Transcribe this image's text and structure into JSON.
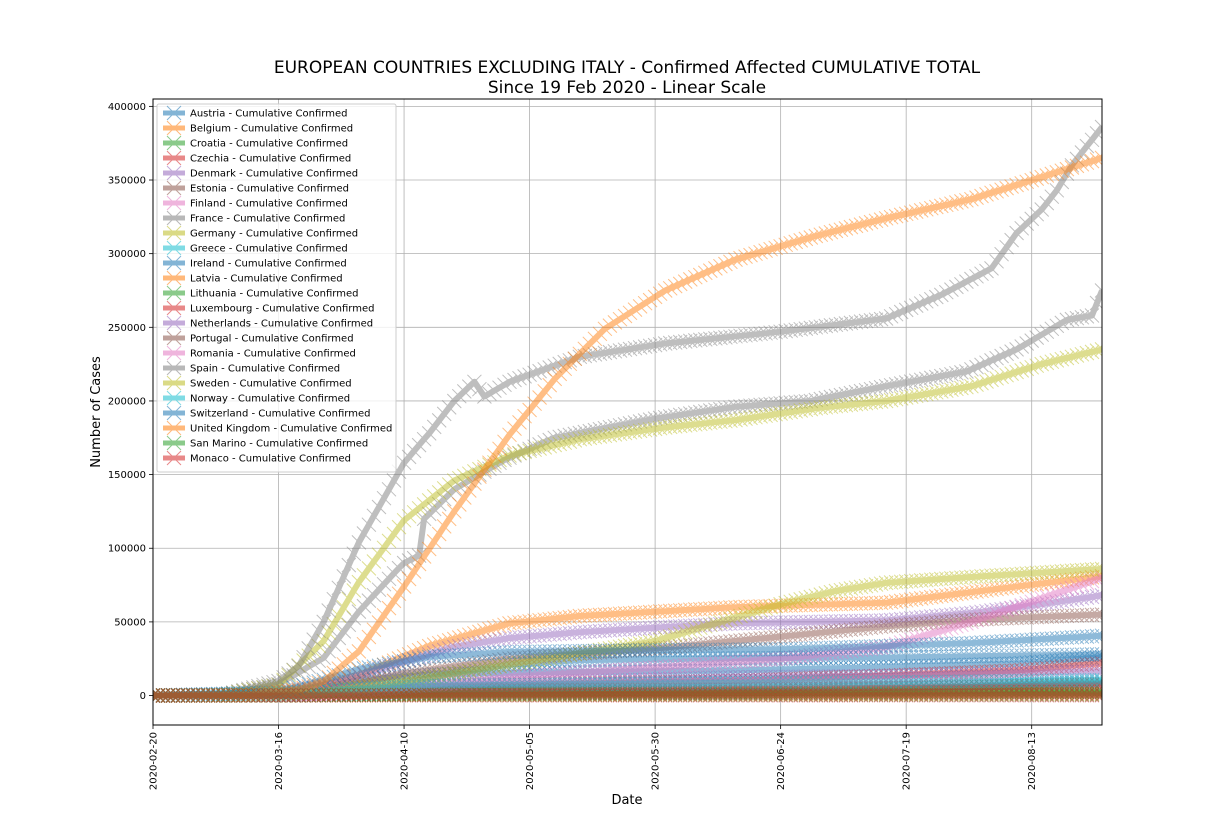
{
  "chart_data": {
    "type": "line",
    "title": "EUROPEAN COUNTRIES EXCLUDING ITALY - Confirmed Affected CUMULATIVE TOTAL",
    "subtitle": "Since 19 Feb 2020 - Linear Scale",
    "xlabel": "Date",
    "ylabel": "Number of Cases",
    "xlim": [
      "2020-02-20",
      "2020-08-27"
    ],
    "ylim": [
      -20000,
      405000
    ],
    "x_ticks": [
      "2020-02-20",
      "2020-03-16",
      "2020-04-10",
      "2020-05-05",
      "2020-05-30",
      "2020-06-24",
      "2020-07-19",
      "2020-08-13"
    ],
    "y_ticks": [
      0,
      50000,
      100000,
      150000,
      200000,
      250000,
      300000,
      350000,
      400000
    ],
    "grid": true,
    "legend_position": "upper-left",
    "series": [
      {
        "name": "Austria - Cumulative Confirmed",
        "color": "#1f77b4",
        "points": [
          [
            "2020-02-20",
            0
          ],
          [
            "2020-03-10",
            150
          ],
          [
            "2020-03-20",
            2600
          ],
          [
            "2020-04-01",
            10500
          ],
          [
            "2020-04-15",
            14300
          ],
          [
            "2020-05-05",
            15700
          ],
          [
            "2020-06-15",
            17100
          ],
          [
            "2020-07-15",
            19300
          ],
          [
            "2020-08-10",
            21800
          ],
          [
            "2020-08-27",
            26000
          ]
        ]
      },
      {
        "name": "Belgium - Cumulative Confirmed",
        "color": "#ff7f0e",
        "points": [
          [
            "2020-02-20",
            0
          ],
          [
            "2020-03-10",
            270
          ],
          [
            "2020-03-20",
            2800
          ],
          [
            "2020-04-01",
            13900
          ],
          [
            "2020-04-15",
            33600
          ],
          [
            "2020-05-01",
            49000
          ],
          [
            "2020-05-15",
            54000
          ],
          [
            "2020-06-15",
            60000
          ],
          [
            "2020-07-15",
            63000
          ],
          [
            "2020-08-10",
            74000
          ],
          [
            "2020-08-27",
            81000
          ]
        ]
      },
      {
        "name": "Croatia - Cumulative Confirmed",
        "color": "#2ca02c",
        "points": [
          [
            "2020-02-20",
            0
          ],
          [
            "2020-03-20",
            100
          ],
          [
            "2020-04-15",
            1800
          ],
          [
            "2020-06-15",
            2400
          ],
          [
            "2020-07-15",
            4500
          ],
          [
            "2020-08-27",
            8000
          ]
        ]
      },
      {
        "name": "Czechia - Cumulative Confirmed",
        "color": "#d62728",
        "points": [
          [
            "2020-02-20",
            0
          ],
          [
            "2020-03-20",
            800
          ],
          [
            "2020-04-15",
            6400
          ],
          [
            "2020-06-15",
            10000
          ],
          [
            "2020-07-15",
            13500
          ],
          [
            "2020-08-10",
            17000
          ],
          [
            "2020-08-27",
            22000
          ]
        ]
      },
      {
        "name": "Denmark - Cumulative Confirmed",
        "color": "#9467bd",
        "points": [
          [
            "2020-02-20",
            0
          ],
          [
            "2020-03-20",
            1300
          ],
          [
            "2020-04-15",
            6700
          ],
          [
            "2020-06-15",
            12500
          ],
          [
            "2020-07-15",
            13200
          ],
          [
            "2020-08-27",
            16500
          ]
        ]
      },
      {
        "name": "Estonia - Cumulative Confirmed",
        "color": "#8c564b",
        "points": [
          [
            "2020-02-20",
            0
          ],
          [
            "2020-03-20",
            300
          ],
          [
            "2020-04-15",
            1400
          ],
          [
            "2020-08-27",
            2300
          ]
        ]
      },
      {
        "name": "Finland - Cumulative Confirmed",
        "color": "#e377c2",
        "points": [
          [
            "2020-02-20",
            0
          ],
          [
            "2020-03-20",
            450
          ],
          [
            "2020-04-15",
            3200
          ],
          [
            "2020-06-15",
            7100
          ],
          [
            "2020-08-27",
            8100
          ]
        ]
      },
      {
        "name": "France - Cumulative Confirmed",
        "color": "#7f7f7f",
        "points": [
          [
            "2020-02-20",
            12
          ],
          [
            "2020-03-05",
            420
          ],
          [
            "2020-03-16",
            7700
          ],
          [
            "2020-03-25",
            25600
          ],
          [
            "2020-04-01",
            57000
          ],
          [
            "2020-04-08",
            83000
          ],
          [
            "2020-04-10",
            90000
          ],
          [
            "2020-04-13",
            95000
          ],
          [
            "2020-04-14",
            120000
          ],
          [
            "2020-04-20",
            140000
          ],
          [
            "2020-04-30",
            160000
          ],
          [
            "2020-05-10",
            175000
          ],
          [
            "2020-05-30",
            188000
          ],
          [
            "2020-06-15",
            196000
          ],
          [
            "2020-06-30",
            200000
          ],
          [
            "2020-07-15",
            210000
          ],
          [
            "2020-07-31",
            220000
          ],
          [
            "2020-08-10",
            235000
          ],
          [
            "2020-08-20",
            255000
          ],
          [
            "2020-08-25",
            258000
          ],
          [
            "2020-08-27",
            275000
          ]
        ]
      },
      {
        "name": "Germany - Cumulative Confirmed",
        "color": "#bcbd22",
        "points": [
          [
            "2020-02-20",
            16
          ],
          [
            "2020-03-05",
            480
          ],
          [
            "2020-03-16",
            7300
          ],
          [
            "2020-03-25",
            37000
          ],
          [
            "2020-04-01",
            77000
          ],
          [
            "2020-04-10",
            119000
          ],
          [
            "2020-04-20",
            146000
          ],
          [
            "2020-05-01",
            163000
          ],
          [
            "2020-05-15",
            174000
          ],
          [
            "2020-06-01",
            182000
          ],
          [
            "2020-06-15",
            187000
          ],
          [
            "2020-07-01",
            195000
          ],
          [
            "2020-07-15",
            200000
          ],
          [
            "2020-08-01",
            210000
          ],
          [
            "2020-08-15",
            225000
          ],
          [
            "2020-08-27",
            235000
          ]
        ]
      },
      {
        "name": "Greece - Cumulative Confirmed",
        "color": "#17becf",
        "points": [
          [
            "2020-02-20",
            0
          ],
          [
            "2020-03-20",
            500
          ],
          [
            "2020-04-15",
            2200
          ],
          [
            "2020-06-15",
            3100
          ],
          [
            "2020-07-15",
            3900
          ],
          [
            "2020-08-27",
            9600
          ]
        ]
      },
      {
        "name": "Ireland - Cumulative Confirmed",
        "color": "#1f77b4",
        "points": [
          [
            "2020-02-20",
            0
          ],
          [
            "2020-03-20",
            680
          ],
          [
            "2020-04-10",
            8000
          ],
          [
            "2020-04-20",
            15600
          ],
          [
            "2020-05-01",
            21000
          ],
          [
            "2020-05-15",
            24000
          ],
          [
            "2020-06-15",
            25300
          ],
          [
            "2020-07-15",
            25800
          ],
          [
            "2020-08-27",
            28000
          ]
        ]
      },
      {
        "name": "Latvia - Cumulative Confirmed",
        "color": "#ff7f0e",
        "points": [
          [
            "2020-02-20",
            0
          ],
          [
            "2020-03-20",
            110
          ],
          [
            "2020-04-15",
            700
          ],
          [
            "2020-08-27",
            1300
          ]
        ]
      },
      {
        "name": "Lithuania - Cumulative Confirmed",
        "color": "#2ca02c",
        "points": [
          [
            "2020-02-20",
            0
          ],
          [
            "2020-03-20",
            60
          ],
          [
            "2020-04-15",
            1100
          ],
          [
            "2020-06-15",
            1750
          ],
          [
            "2020-08-27",
            2600
          ]
        ]
      },
      {
        "name": "Luxembourg - Cumulative Confirmed",
        "color": "#d62728",
        "points": [
          [
            "2020-02-20",
            0
          ],
          [
            "2020-03-20",
            480
          ],
          [
            "2020-04-15",
            3300
          ],
          [
            "2020-06-15",
            4100
          ],
          [
            "2020-07-15",
            5200
          ],
          [
            "2020-08-27",
            7200
          ]
        ]
      },
      {
        "name": "Netherlands - Cumulative Confirmed",
        "color": "#9467bd",
        "points": [
          [
            "2020-02-20",
            0
          ],
          [
            "2020-03-16",
            1400
          ],
          [
            "2020-03-25",
            6400
          ],
          [
            "2020-04-10",
            23000
          ],
          [
            "2020-04-20",
            33000
          ],
          [
            "2020-05-01",
            39000
          ],
          [
            "2020-05-15",
            43000
          ],
          [
            "2020-06-01",
            46500
          ],
          [
            "2020-06-15",
            49000
          ],
          [
            "2020-07-15",
            51000
          ],
          [
            "2020-08-01",
            56000
          ],
          [
            "2020-08-15",
            62000
          ],
          [
            "2020-08-27",
            68000
          ]
        ]
      },
      {
        "name": "Portugal - Cumulative Confirmed",
        "color": "#8c564b",
        "points": [
          [
            "2020-02-20",
            0
          ],
          [
            "2020-03-16",
            330
          ],
          [
            "2020-03-25",
            3500
          ],
          [
            "2020-04-10",
            15000
          ],
          [
            "2020-05-01",
            25000
          ],
          [
            "2020-06-01",
            32500
          ],
          [
            "2020-06-24",
            40000
          ],
          [
            "2020-07-15",
            47000
          ],
          [
            "2020-08-01",
            51500
          ],
          [
            "2020-08-27",
            55000
          ]
        ]
      },
      {
        "name": "Romania - Cumulative Confirmed",
        "color": "#e377c2",
        "points": [
          [
            "2020-02-20",
            0
          ],
          [
            "2020-03-20",
            300
          ],
          [
            "2020-04-10",
            5500
          ],
          [
            "2020-05-01",
            12500
          ],
          [
            "2020-06-01",
            19500
          ],
          [
            "2020-06-24",
            25000
          ],
          [
            "2020-07-15",
            33000
          ],
          [
            "2020-08-01",
            50000
          ],
          [
            "2020-08-15",
            66000
          ],
          [
            "2020-08-27",
            80000
          ]
        ]
      },
      {
        "name": "Spain - Cumulative Confirmed",
        "color": "#7f7f7f",
        "points": [
          [
            "2020-02-20",
            2
          ],
          [
            "2020-03-05",
            260
          ],
          [
            "2020-03-16",
            9900
          ],
          [
            "2020-03-20",
            20000
          ],
          [
            "2020-03-25",
            50000
          ],
          [
            "2020-04-01",
            104000
          ],
          [
            "2020-04-10",
            158000
          ],
          [
            "2020-04-15",
            178000
          ],
          [
            "2020-04-20",
            200000
          ],
          [
            "2020-04-24",
            213000
          ],
          [
            "2020-04-26",
            203000
          ],
          [
            "2020-05-01",
            213000
          ],
          [
            "2020-05-15",
            230000
          ],
          [
            "2020-06-01",
            239000
          ],
          [
            "2020-06-24",
            247000
          ],
          [
            "2020-07-15",
            256000
          ],
          [
            "2020-07-26",
            272000
          ],
          [
            "2020-08-05",
            290000
          ],
          [
            "2020-08-10",
            314000
          ],
          [
            "2020-08-15",
            330000
          ],
          [
            "2020-08-18",
            343000
          ],
          [
            "2020-08-21",
            360000
          ],
          [
            "2020-08-27",
            386000
          ]
        ]
      },
      {
        "name": "Sweden - Cumulative Confirmed",
        "color": "#bcbd22",
        "points": [
          [
            "2020-02-20",
            1
          ],
          [
            "2020-03-16",
            1100
          ],
          [
            "2020-03-25",
            2500
          ],
          [
            "2020-04-10",
            9600
          ],
          [
            "2020-05-01",
            21000
          ],
          [
            "2020-05-30",
            37000
          ],
          [
            "2020-06-15",
            53000
          ],
          [
            "2020-06-24",
            62000
          ],
          [
            "2020-07-05",
            71000
          ],
          [
            "2020-07-15",
            76500
          ],
          [
            "2020-08-01",
            80500
          ],
          [
            "2020-08-27",
            86000
          ]
        ]
      },
      {
        "name": "Norway - Cumulative Confirmed",
        "color": "#17becf",
        "points": [
          [
            "2020-02-20",
            0
          ],
          [
            "2020-03-16",
            1300
          ],
          [
            "2020-03-25",
            3100
          ],
          [
            "2020-04-15",
            6700
          ],
          [
            "2020-06-15",
            8700
          ],
          [
            "2020-07-15",
            9000
          ],
          [
            "2020-08-27",
            10500
          ]
        ]
      },
      {
        "name": "Switzerland - Cumulative Confirmed",
        "color": "#1f77b4",
        "points": [
          [
            "2020-02-20",
            0
          ],
          [
            "2020-03-16",
            2200
          ],
          [
            "2020-03-25",
            10700
          ],
          [
            "2020-04-01",
            17800
          ],
          [
            "2020-04-15",
            26300
          ],
          [
            "2020-05-01",
            29600
          ],
          [
            "2020-06-01",
            30900
          ],
          [
            "2020-06-24",
            31400
          ],
          [
            "2020-07-15",
            33600
          ],
          [
            "2020-08-01",
            35600
          ],
          [
            "2020-08-27",
            40600
          ]
        ]
      },
      {
        "name": "United Kingdom - Cumulative Confirmed",
        "color": "#ff7f0e",
        "points": [
          [
            "2020-02-20",
            9
          ],
          [
            "2020-03-10",
            370
          ],
          [
            "2020-03-20",
            4000
          ],
          [
            "2020-03-25",
            9500
          ],
          [
            "2020-04-01",
            30000
          ],
          [
            "2020-04-10",
            74000
          ],
          [
            "2020-04-20",
            125000
          ],
          [
            "2020-05-01",
            177000
          ],
          [
            "2020-05-10",
            215000
          ],
          [
            "2020-05-20",
            249000
          ],
          [
            "2020-06-01",
            275000
          ],
          [
            "2020-06-15",
            296000
          ],
          [
            "2020-07-01",
            312000
          ],
          [
            "2020-07-15",
            324000
          ],
          [
            "2020-08-01",
            337000
          ],
          [
            "2020-08-15",
            352000
          ],
          [
            "2020-08-27",
            365000
          ]
        ]
      },
      {
        "name": "San Marino - Cumulative Confirmed",
        "color": "#2ca02c",
        "points": [
          [
            "2020-02-20",
            0
          ],
          [
            "2020-03-20",
            140
          ],
          [
            "2020-04-15",
            400
          ],
          [
            "2020-08-27",
            720
          ]
        ]
      },
      {
        "name": "Monaco - Cumulative Confirmed",
        "color": "#d62728",
        "points": [
          [
            "2020-02-20",
            0
          ],
          [
            "2020-03-20",
            20
          ],
          [
            "2020-04-15",
            95
          ],
          [
            "2020-08-27",
            150
          ]
        ]
      }
    ]
  }
}
